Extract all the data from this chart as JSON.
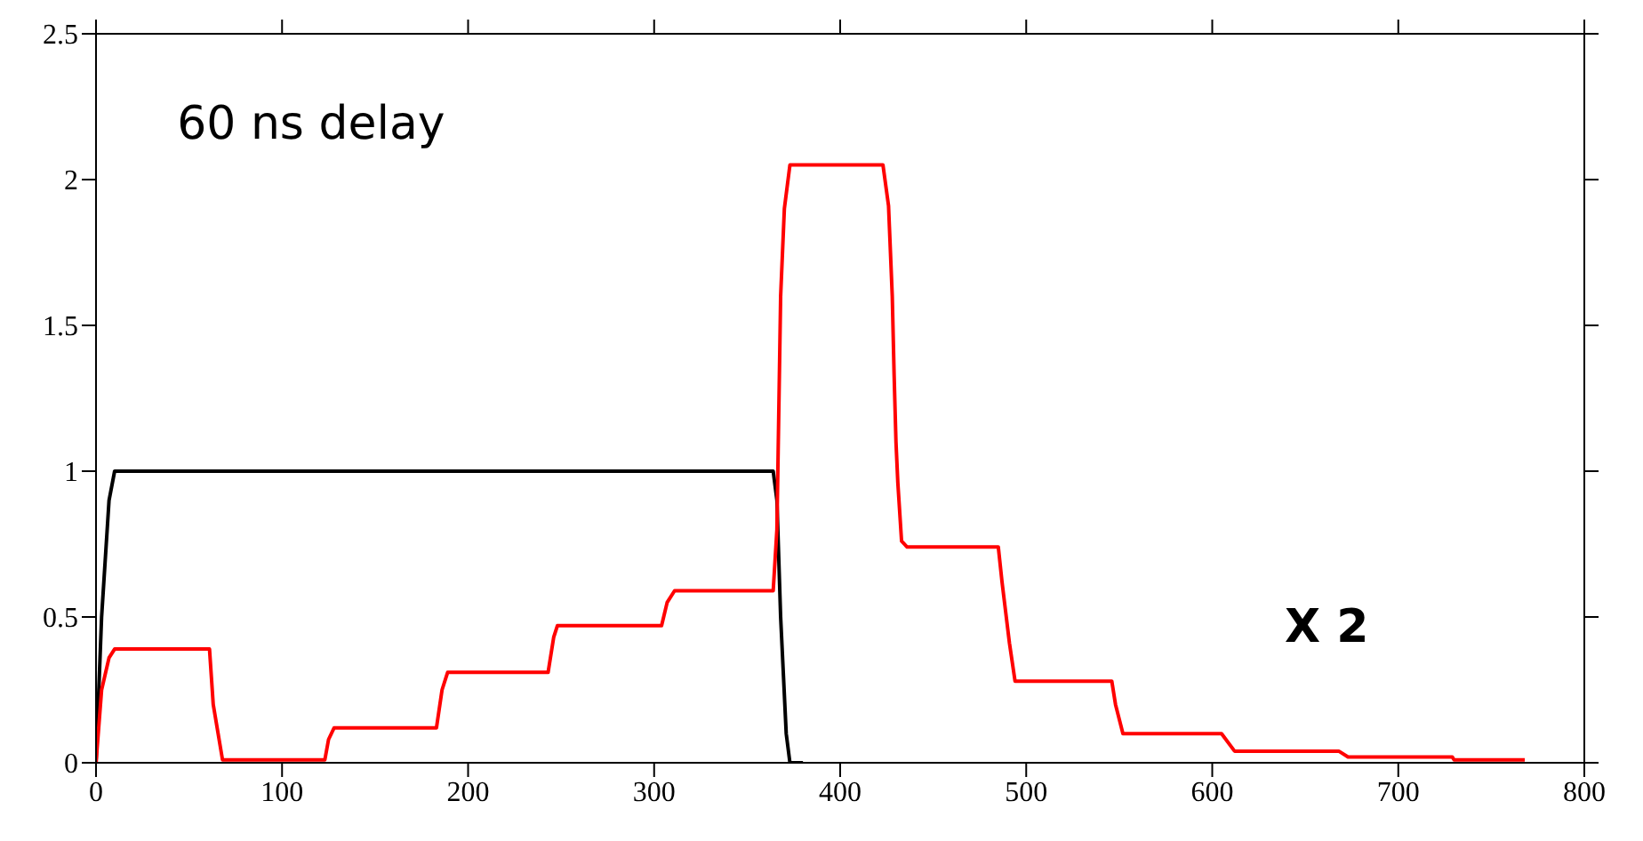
{
  "chart_data": {
    "type": "line",
    "marker": "none",
    "line_style": "solid",
    "xlim": [
      0,
      800
    ],
    "xticks": [
      0,
      100,
      200,
      300,
      400,
      500,
      600,
      700,
      800
    ],
    "ylim": [
      0,
      2.5
    ],
    "yticks": [
      0,
      0.5,
      1,
      1.5,
      2,
      2.5
    ],
    "annotations": [
      "60 ns delay",
      "X 2"
    ],
    "series": [
      {
        "color": "#000000",
        "x": [
          0,
          3,
          7,
          10,
          364,
          366,
          368,
          371,
          373,
          380
        ],
        "values": [
          0,
          0.5,
          0.9,
          1,
          1,
          0.9,
          0.5,
          0.1,
          0,
          0
        ]
      },
      {
        "color": "#ff0000",
        "x": [
          0,
          3,
          7,
          10,
          61,
          63,
          68,
          123,
          125,
          128,
          183,
          186,
          189,
          243,
          246,
          248,
          304,
          307,
          311,
          364,
          366,
          368,
          370,
          373,
          423,
          426,
          428,
          429,
          430,
          431,
          433,
          436,
          485,
          487,
          491,
          494,
          546,
          548,
          552,
          605,
          612,
          668,
          673,
          729,
          730,
          768
        ],
        "values": [
          0,
          0.25,
          0.36,
          0.39,
          0.39,
          0.2,
          0.01,
          0.01,
          0.08,
          0.12,
          0.12,
          0.25,
          0.31,
          0.31,
          0.43,
          0.47,
          0.47,
          0.55,
          0.59,
          0.59,
          0.8,
          1.6,
          1.9,
          2.05,
          2.05,
          1.91,
          1.6,
          1.33,
          1.1,
          0.96,
          0.76,
          0.74,
          0.74,
          0.62,
          0.41,
          0.28,
          0.28,
          0.2,
          0.1,
          0.1,
          0.04,
          0.04,
          0.02,
          0.02,
          0.01,
          0.01
        ]
      }
    ]
  }
}
